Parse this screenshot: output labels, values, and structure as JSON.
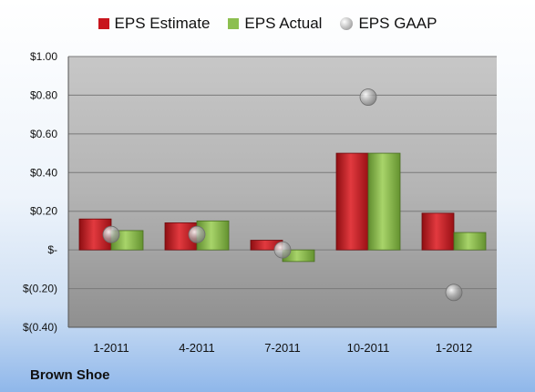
{
  "legend": {
    "estimate": "EPS Estimate",
    "actual": "EPS Actual",
    "gaap": "EPS GAAP"
  },
  "company_label": "Brown Shoe",
  "colors": {
    "estimate": "#c8151d",
    "actual": "#8cbf4f",
    "gaap": "#a9a9a9"
  },
  "chart_data": {
    "type": "bar",
    "categories": [
      "1-2011",
      "4-2011",
      "7-2011",
      "10-2011",
      "1-2012"
    ],
    "series": [
      {
        "name": "EPS Estimate",
        "values": [
          0.16,
          0.14,
          0.05,
          0.5,
          0.19
        ]
      },
      {
        "name": "EPS Actual",
        "values": [
          0.1,
          0.15,
          -0.06,
          0.5,
          0.09
        ]
      },
      {
        "name": "EPS GAAP",
        "style": "marker",
        "values": [
          0.08,
          0.08,
          0.0,
          0.79,
          -0.22
        ]
      }
    ],
    "ylim": [
      -0.4,
      1.0
    ],
    "yticks": [
      {
        "value": 1.0,
        "label": "$1.00"
      },
      {
        "value": 0.8,
        "label": "$0.80"
      },
      {
        "value": 0.6,
        "label": "$0.60"
      },
      {
        "value": 0.4,
        "label": "$0.40"
      },
      {
        "value": 0.2,
        "label": "$0.20"
      },
      {
        "value": 0.0,
        "label": "$-"
      },
      {
        "value": -0.2,
        "label": "$(0.20)"
      },
      {
        "value": -0.4,
        "label": "$(0.40)"
      }
    ],
    "grid": true,
    "legend_position": "top"
  }
}
